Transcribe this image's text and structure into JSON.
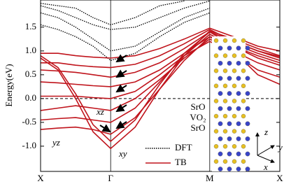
{
  "chart_data": {
    "type": "line",
    "ylabel": "Energy(eV)",
    "x": [
      0,
      0.25,
      0.5,
      0.75,
      1,
      1.35,
      1.7,
      2.05,
      2.414,
      2.75,
      3.1,
      3.414
    ],
    "xlim": [
      0,
      3.414
    ],
    "xticks": [
      {
        "value": 0,
        "label": "X"
      },
      {
        "value": 1,
        "label": "Γ"
      },
      {
        "value": 2.414,
        "label": "M"
      },
      {
        "value": 3.414,
        "label": "X"
      }
    ],
    "ylim": [
      -1.53,
      2.07
    ],
    "yticks": [
      {
        "value": -1,
        "label": "-1.0"
      },
      -0.5,
      {
        "value": 0,
        "label": "0.0"
      },
      0.5,
      {
        "value": 1,
        "label": "1.0"
      },
      1.5
    ],
    "fermi_level": 0,
    "legend": "lower right",
    "series": [
      {
        "name": "DFT",
        "color": "#000000",
        "style": "dotted",
        "bands": [
          [
            1.95,
            1.85,
            1.7,
            1.55,
            1.45,
            1.5,
            1.7,
            1.9,
            2.05,
            null,
            null,
            null
          ],
          [
            1.8,
            1.7,
            1.5,
            1.25,
            1.0,
            1.1,
            1.4,
            1.7,
            1.9,
            null,
            null,
            null
          ],
          [
            1.55,
            1.45,
            1.3,
            1.1,
            0.8,
            0.95,
            1.3,
            1.6,
            1.8,
            null,
            null,
            null
          ],
          [
            2.0,
            1.95,
            1.9,
            1.7,
            1.55,
            1.7,
            1.95,
            2.05,
            null,
            null,
            null,
            null
          ]
        ]
      },
      {
        "name": "TB",
        "color": "#c0141c",
        "style": "solid",
        "bands": [
          [
            0.85,
            0.6,
            0.0,
            -0.7,
            -1.05,
            -0.6,
            0.2,
            0.9,
            1.42,
            1.25,
            1.05,
            0.9
          ],
          [
            0.9,
            0.65,
            0.1,
            -0.55,
            -0.9,
            -0.45,
            0.3,
            0.95,
            1.4,
            1.2,
            1.0,
            0.85
          ],
          [
            -0.65,
            -0.62,
            -0.6,
            -0.65,
            -0.75,
            -0.4,
            0.2,
            0.8,
            1.3,
            1.15,
            0.95,
            0.8
          ],
          [
            -0.45,
            -0.42,
            -0.4,
            -0.45,
            -0.5,
            -0.2,
            0.35,
            0.9,
            1.35,
            1.1,
            0.9,
            0.75
          ],
          [
            -0.25,
            -0.2,
            -0.15,
            -0.2,
            -0.25,
            0.0,
            0.4,
            0.85,
            1.25,
            1.0,
            0.75,
            0.6
          ],
          [
            0.05,
            0.05,
            0.05,
            0.02,
            0.0,
            0.15,
            0.5,
            0.9,
            1.2,
            0.95,
            0.6,
            0.45
          ],
          [
            0.35,
            0.33,
            0.3,
            0.27,
            0.25,
            0.35,
            0.6,
            0.95,
            1.3,
            1.0,
            0.5,
            0.3
          ],
          [
            0.6,
            0.58,
            0.55,
            0.5,
            0.45,
            0.55,
            0.75,
            1.05,
            1.4,
            1.1,
            0.85,
            0.7
          ],
          [
            0.75,
            0.75,
            0.7,
            0.67,
            0.65,
            0.72,
            0.9,
            1.15,
            1.45,
            1.2,
            1.0,
            0.88
          ],
          [
            0.95,
            0.95,
            0.9,
            0.87,
            0.85,
            0.9,
            1.05,
            1.25,
            1.48,
            1.3,
            1.1,
            1.0
          ]
        ]
      }
    ],
    "annotations": [
      "xz",
      "yz",
      "xy"
    ],
    "layers": [
      "SrO",
      "VO₂",
      "SrO"
    ],
    "inset_axes": [
      "z",
      "y",
      "x"
    ]
  }
}
